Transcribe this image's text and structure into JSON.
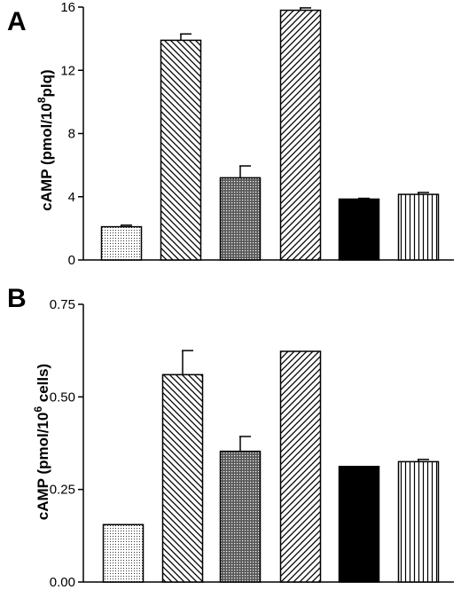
{
  "chart_data": [
    {
      "type": "bar",
      "panel": "A",
      "ylabel": {
        "pre": "cAMP (pmol/10",
        "sup": "8",
        "post": "plq)"
      },
      "ylim": [
        0,
        16
      ],
      "yticks": [
        "0",
        "4",
        "8",
        "12",
        "16"
      ],
      "values": [
        2.1,
        13.9,
        5.2,
        15.8,
        3.85,
        4.15
      ],
      "errors": [
        0.1,
        0.4,
        0.75,
        0.15,
        0.05,
        0.12
      ],
      "patterns": [
        "dots",
        "diag-down",
        "crosshatch",
        "diag-up",
        "solid",
        "vertical"
      ],
      "grid": false
    },
    {
      "type": "bar",
      "panel": "B",
      "ylabel": {
        "pre": "cAMP (pmol/10",
        "sup": "6",
        "post": " cells)"
      },
      "ylim": [
        0,
        0.75
      ],
      "yticks": [
        "0.00",
        "0.25",
        "0.50",
        "0.75"
      ],
      "values": [
        0.155,
        0.56,
        0.353,
        0.623,
        0.312,
        0.325
      ],
      "errors": [
        0.0,
        0.065,
        0.04,
        0.0,
        0.0,
        0.006
      ],
      "patterns": [
        "dots",
        "diag-down",
        "crosshatch",
        "diag-up",
        "solid",
        "vertical"
      ],
      "grid": false
    }
  ]
}
